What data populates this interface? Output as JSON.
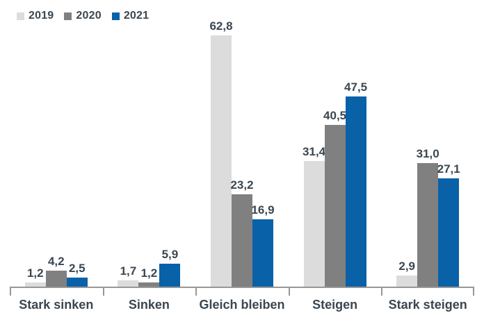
{
  "chart_data": {
    "type": "bar",
    "title": "",
    "xlabel": "",
    "ylabel": "",
    "categories": [
      "Stark sinken",
      "Sinken",
      "Gleich bleiben",
      "Steigen",
      "Stark steigen"
    ],
    "series": [
      {
        "name": "2019",
        "color": "#DCDCDC",
        "values": [
          1.2,
          1.7,
          62.8,
          31.4,
          2.9
        ]
      },
      {
        "name": "2020",
        "color": "#808080",
        "values": [
          4.2,
          1.2,
          23.2,
          40.5,
          31.0
        ]
      },
      {
        "name": "2021",
        "color": "#0961A8",
        "values": [
          2.5,
          5.9,
          16.9,
          47.5,
          27.1
        ]
      }
    ],
    "value_labels": [
      [
        "1,2",
        "1,7",
        "62,8",
        "31,4",
        "2,9"
      ],
      [
        "4,2",
        "1,2",
        "23,2",
        "40,5",
        "31,0"
      ],
      [
        "2,5",
        "5,9",
        "16,9",
        "47,5",
        "27,1"
      ]
    ],
    "ylim": [
      0,
      71.6
    ],
    "grid": false,
    "legend_position": "top-left",
    "decimal_separator": ",",
    "axis_color": "#979797",
    "text_color": "#3A4650",
    "background_color": "#FFFFFF"
  }
}
